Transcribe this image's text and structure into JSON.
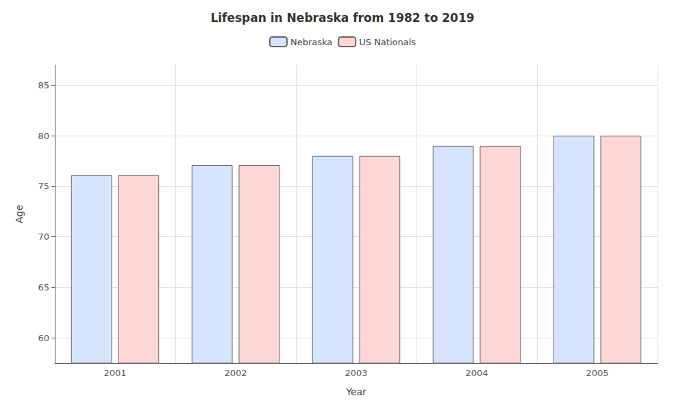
{
  "chart_data": {
    "type": "bar",
    "title": "Lifespan in Nebraska from 1982 to 2019",
    "xlabel": "Year",
    "ylabel": "Age",
    "categories": [
      "2001",
      "2002",
      "2003",
      "2004",
      "2005"
    ],
    "series": [
      {
        "name": "Nebraska",
        "color": "#d6e4ff",
        "values": [
          76.1,
          77.1,
          78.0,
          79.0,
          80.0
        ]
      },
      {
        "name": "US Nationals",
        "color": "#ffd6d6",
        "values": [
          76.1,
          77.1,
          78.0,
          79.0,
          80.0
        ]
      }
    ],
    "ylim": [
      57.5,
      87.0
    ],
    "yticks": [
      60,
      65,
      70,
      75,
      80,
      85
    ],
    "grid": true,
    "legend": "top"
  }
}
